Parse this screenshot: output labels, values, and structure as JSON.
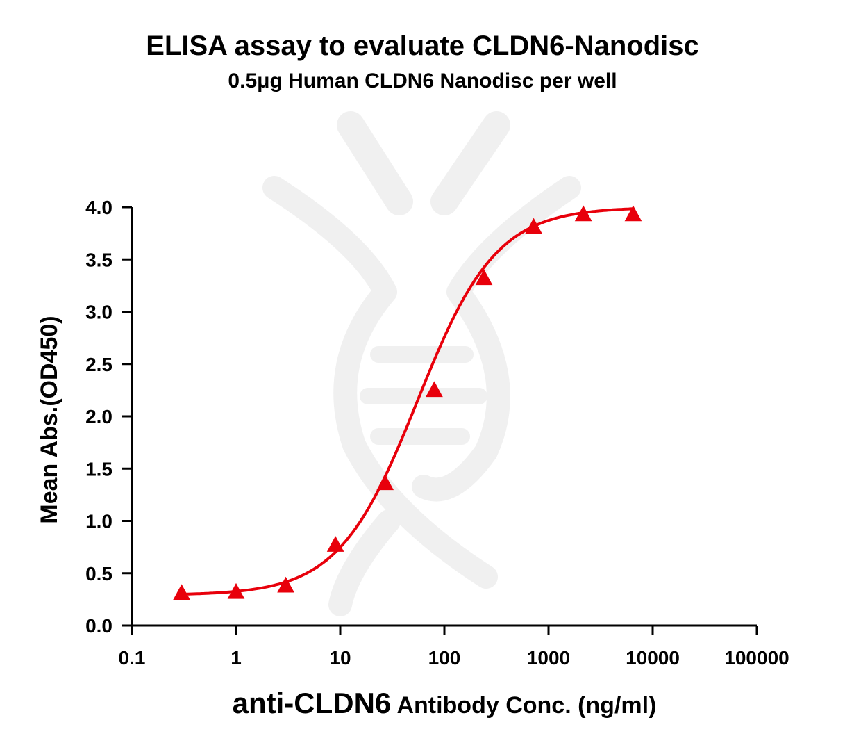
{
  "chart_data": {
    "type": "scatter",
    "title": "ELISA assay to evaluate CLDN6-Nanodisc",
    "subtitle": "0.5μg Human CLDN6 Nanodisc per well",
    "xlabel_main": "anti-CLDN6",
    "xlabel_rest": " Antibody Conc. (ng/ml)",
    "ylabel": "Mean Abs.(OD450)",
    "x_scale": "log",
    "xlim": [
      0.1,
      100000
    ],
    "ylim": [
      0,
      4.0
    ],
    "x_ticks": [
      0.1,
      1,
      10,
      100,
      1000,
      10000,
      100000
    ],
    "x_tick_labels": [
      "0.1",
      "1",
      "10",
      "100",
      "1000",
      "10000",
      "100000"
    ],
    "y_ticks": [
      0,
      0.5,
      1.0,
      1.5,
      2.0,
      2.5,
      3.0,
      3.5,
      4.0
    ],
    "y_tick_labels": [
      "0.0",
      "0.5",
      "1.0",
      "1.5",
      "2.0",
      "2.5",
      "3.0",
      "3.5",
      "4.0"
    ],
    "marker": "triangle",
    "color": "#e8000b",
    "series": [
      {
        "x": [
          0.3,
          1,
          3,
          9,
          27,
          80,
          240,
          720,
          2160,
          6500
        ],
        "y": [
          0.31,
          0.32,
          0.38,
          0.77,
          1.36,
          2.25,
          3.32,
          3.81,
          3.93,
          3.93
        ]
      }
    ],
    "fit": {
      "type": "4PL",
      "bottom": 0.29,
      "top": 4.0,
      "ec50": 55,
      "hill": 1.15,
      "x_range": [
        0.3,
        6500
      ]
    },
    "grid": false,
    "legend": "none"
  }
}
